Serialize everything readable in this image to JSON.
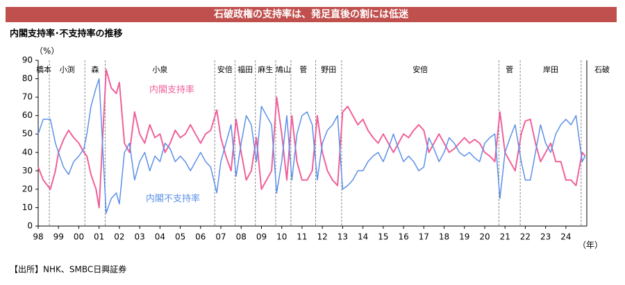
{
  "title": "石破政権の支持率は、発足直後の割には低迷",
  "source": "【出所】NHK、SMBC日興証券",
  "chart_data": {
    "type": "line",
    "subtitle": "内閣支持率･不支持率の推移",
    "y_label": "（%）",
    "x_label": "（年）",
    "x": [
      1998.0,
      1998.25,
      1998.6,
      1998.85,
      1999.0,
      1999.25,
      1999.5,
      1999.75,
      2000.0,
      2000.25,
      2000.4,
      2000.6,
      2000.85,
      2001.0,
      2001.35,
      2001.6,
      2001.85,
      2002.0,
      2002.25,
      2002.5,
      2002.75,
      2003.0,
      2003.25,
      2003.5,
      2003.75,
      2004.0,
      2004.25,
      2004.5,
      2004.75,
      2005.0,
      2005.25,
      2005.5,
      2005.75,
      2006.0,
      2006.25,
      2006.5,
      2006.8,
      2007.0,
      2007.25,
      2007.5,
      2007.75,
      2008.0,
      2008.25,
      2008.5,
      2008.75,
      2009.0,
      2009.25,
      2009.5,
      2009.75,
      2010.0,
      2010.25,
      2010.5,
      2010.75,
      2011.0,
      2011.25,
      2011.5,
      2011.75,
      2012.0,
      2012.25,
      2012.5,
      2012.75,
      2013.0,
      2013.25,
      2013.5,
      2013.75,
      2014.0,
      2014.25,
      2014.5,
      2014.75,
      2015.0,
      2015.25,
      2015.5,
      2015.75,
      2016.0,
      2016.25,
      2016.5,
      2016.75,
      2017.0,
      2017.25,
      2017.5,
      2017.75,
      2018.0,
      2018.25,
      2018.5,
      2018.75,
      2019.0,
      2019.25,
      2019.5,
      2019.75,
      2020.0,
      2020.25,
      2020.5,
      2020.75,
      2021.0,
      2021.25,
      2021.5,
      2021.8,
      2022.0,
      2022.25,
      2022.5,
      2022.75,
      2023.0,
      2023.25,
      2023.5,
      2023.75,
      2024.0,
      2024.25,
      2024.5,
      2024.8,
      2024.95
    ],
    "series": [
      {
        "name": "内閣支持率",
        "color": "#f0609a",
        "values": [
          32,
          25,
          20,
          30,
          40,
          47,
          52,
          48,
          45,
          40,
          38,
          28,
          20,
          10,
          85,
          75,
          72,
          78,
          45,
          40,
          62,
          50,
          45,
          55,
          48,
          50,
          40,
          45,
          52,
          48,
          50,
          55,
          50,
          45,
          50,
          52,
          63,
          48,
          38,
          30,
          58,
          40,
          25,
          30,
          48,
          20,
          25,
          30,
          70,
          50,
          25,
          60,
          35,
          25,
          25,
          30,
          60,
          40,
          30,
          25,
          22,
          62,
          65,
          60,
          55,
          58,
          52,
          48,
          45,
          50,
          45,
          40,
          45,
          50,
          48,
          52,
          55,
          52,
          40,
          45,
          50,
          45,
          40,
          42,
          45,
          48,
          45,
          47,
          45,
          40,
          38,
          35,
          62,
          40,
          35,
          30,
          50,
          57,
          58,
          45,
          35,
          40,
          45,
          35,
          35,
          25,
          25,
          22,
          40,
          38
        ]
      },
      {
        "name": "内閣不支持率",
        "color": "#5b8fe8",
        "values": [
          50,
          58,
          58,
          45,
          40,
          32,
          28,
          35,
          38,
          42,
          50,
          65,
          75,
          80,
          7,
          15,
          18,
          12,
          40,
          45,
          25,
          35,
          40,
          30,
          38,
          35,
          45,
          42,
          35,
          38,
          35,
          30,
          35,
          40,
          35,
          32,
          18,
          35,
          45,
          55,
          27,
          45,
          60,
          55,
          35,
          65,
          60,
          55,
          18,
          35,
          60,
          25,
          50,
          60,
          62,
          55,
          25,
          45,
          52,
          55,
          60,
          20,
          22,
          25,
          30,
          30,
          35,
          38,
          40,
          35,
          42,
          50,
          42,
          35,
          38,
          35,
          30,
          32,
          48,
          42,
          35,
          40,
          48,
          45,
          40,
          38,
          40,
          37,
          35,
          45,
          48,
          50,
          15,
          40,
          48,
          55,
          35,
          25,
          25,
          40,
          55,
          45,
          40,
          50,
          55,
          58,
          55,
          60,
          35,
          38
        ]
      }
    ],
    "cabinets": [
      {
        "name": "橋本",
        "start": 1998.0
      },
      {
        "name": "小渕",
        "start": 1998.55
      },
      {
        "name": "森",
        "start": 2000.3
      },
      {
        "name": "小泉",
        "start": 2001.3
      },
      {
        "name": "安倍",
        "start": 2006.7
      },
      {
        "name": "福田",
        "start": 2007.7
      },
      {
        "name": "麻生",
        "start": 2008.7
      },
      {
        "name": "鳩山",
        "start": 2009.7
      },
      {
        "name": "菅",
        "start": 2010.45
      },
      {
        "name": "野田",
        "start": 2011.67
      },
      {
        "name": "安倍",
        "start": 2012.95
      },
      {
        "name": "菅",
        "start": 2020.7
      },
      {
        "name": "岸田",
        "start": 2021.75
      },
      {
        "name": "石破",
        "start": 2024.75
      }
    ],
    "xlim": [
      1998,
      2025.03
    ],
    "ylim": [
      0,
      90
    ],
    "yticks": [
      0,
      10,
      20,
      30,
      40,
      50,
      60,
      70,
      80,
      90
    ],
    "xticks": [
      {
        "value": 1998,
        "label": "98"
      },
      {
        "value": 1999,
        "label": "99"
      },
      {
        "value": 2000,
        "label": "00"
      },
      {
        "value": 2001,
        "label": "01"
      },
      {
        "value": 2002,
        "label": "02"
      },
      {
        "value": 2003,
        "label": "03"
      },
      {
        "value": 2004,
        "label": "04"
      },
      {
        "value": 2005,
        "label": "05"
      },
      {
        "value": 2006,
        "label": "06"
      },
      {
        "value": 2007,
        "label": "07"
      },
      {
        "value": 2008,
        "label": "08"
      },
      {
        "value": 2009,
        "label": "09"
      },
      {
        "value": 2010,
        "label": "10"
      },
      {
        "value": 2011,
        "label": "11"
      },
      {
        "value": 2012,
        "label": "12"
      },
      {
        "value": 2013,
        "label": "13"
      },
      {
        "value": 2014,
        "label": "14"
      },
      {
        "value": 2015,
        "label": "15"
      },
      {
        "value": 2016,
        "label": "16"
      },
      {
        "value": 2017,
        "label": "17"
      },
      {
        "value": 2018,
        "label": "18"
      },
      {
        "value": 2019,
        "label": "19"
      },
      {
        "value": 2020,
        "label": "20"
      },
      {
        "value": 2021,
        "label": "21"
      },
      {
        "value": 2022,
        "label": "22"
      },
      {
        "value": 2023,
        "label": "23"
      },
      {
        "value": 2024,
        "label": "24"
      }
    ]
  }
}
